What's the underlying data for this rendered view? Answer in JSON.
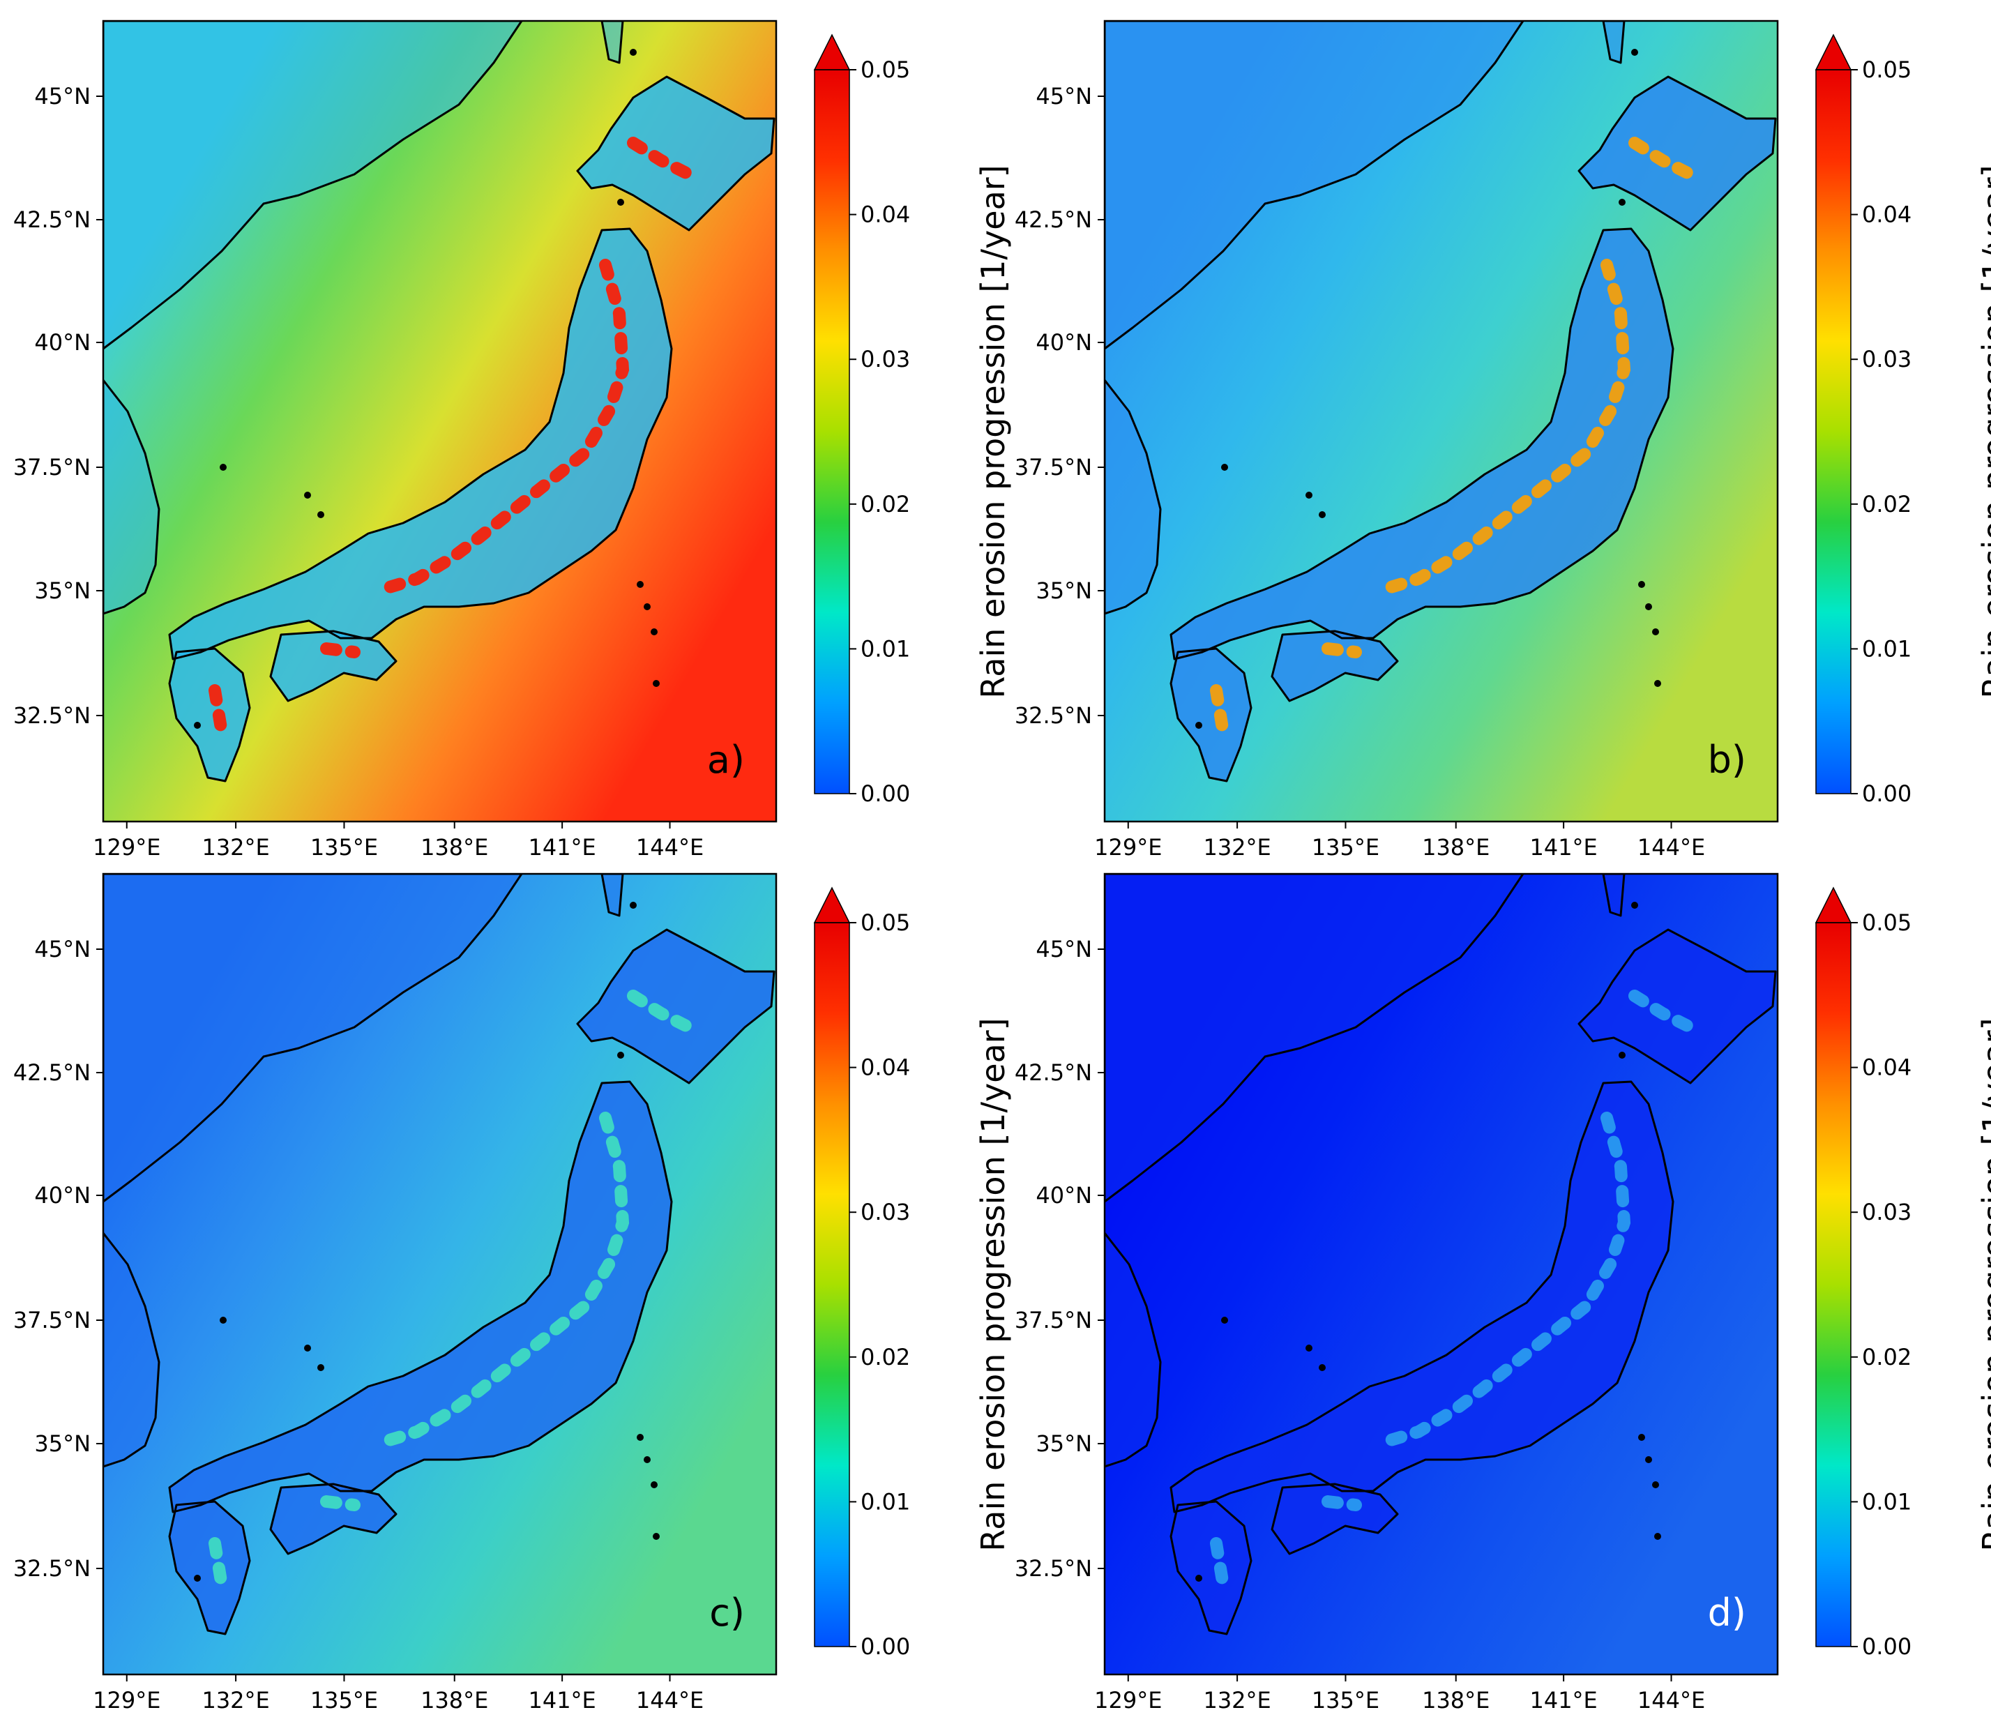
{
  "figure": {
    "lon_ticks": [
      "129°E",
      "132°E",
      "135°E",
      "138°E",
      "141°E",
      "144°E"
    ],
    "lat_ticks": [
      "45°N",
      "42.5°N",
      "40°N",
      "37.5°N",
      "35°N",
      "32.5°N"
    ],
    "colorbar": {
      "label": "Rain erosion progression [1/year]",
      "ticks": [
        "0.05",
        "0.04",
        "0.03",
        "0.02",
        "0.01",
        "0.00"
      ],
      "range": [
        0.0,
        0.05
      ],
      "extend": "max",
      "colormap": [
        "#0050ff",
        "#00a0ff",
        "#00e8c8",
        "#28d040",
        "#a8e000",
        "#ffe000",
        "#ff9000",
        "#ff3000",
        "#e80000"
      ]
    },
    "panels": [
      {
        "id": "a",
        "label": "a)",
        "label_color": "#000000",
        "sea_gradient": [
          "#3fd0d8",
          "#6ad858",
          "#d8e030",
          "#ff8020",
          "#ff2a10"
        ],
        "land_color": "#28b8f0",
        "hotspot_color": "#ff1a00"
      },
      {
        "id": "b",
        "label": "b)",
        "label_color": "#000000",
        "sea_gradient": [
          "#2c9cf2",
          "#30b8ec",
          "#3ed0d0",
          "#60d890",
          "#b8dc40"
        ],
        "land_color": "#2a8af0",
        "hotspot_color": "#ffa000"
      },
      {
        "id": "c",
        "label": "c)",
        "label_color": "#000000",
        "sea_gradient": [
          "#1c6ef2",
          "#2c90f0",
          "#34b4e8",
          "#3ccfc8",
          "#5ad890"
        ],
        "land_color": "#1e6cf0",
        "hotspot_color": "#40e0c0"
      },
      {
        "id": "d",
        "label": "d)",
        "label_color": "#ffffff",
        "sea_gradient": [
          "#0010f4",
          "#0020f4",
          "#0838f2",
          "#1050f0",
          "#1a64ee"
        ],
        "land_color": "#0a2cf2",
        "hotspot_color": "#2aa0f0"
      }
    ]
  }
}
